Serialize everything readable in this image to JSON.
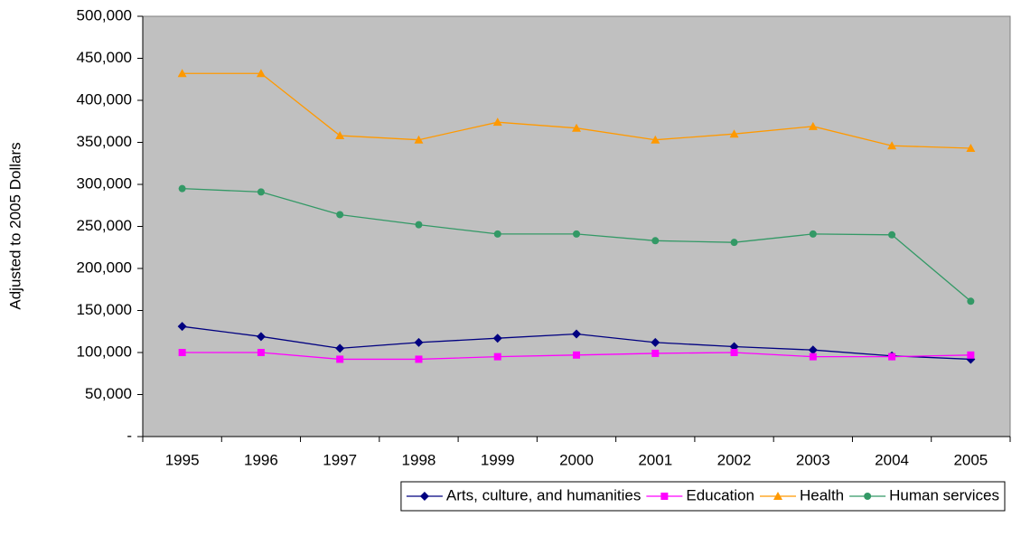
{
  "chart_data": {
    "type": "line",
    "y_label": "Adjusted to 2005 Dollars",
    "categories": [
      "1995",
      "1996",
      "1997",
      "1998",
      "1999",
      "2000",
      "2001",
      "2002",
      "2003",
      "2004",
      "2005"
    ],
    "ylim": [
      0,
      500000
    ],
    "yticks": [
      {
        "value": 0,
        "label": "-"
      },
      {
        "value": 50000,
        "label": "50,000"
      },
      {
        "value": 100000,
        "label": "100,000"
      },
      {
        "value": 150000,
        "label": "150,000"
      },
      {
        "value": 200000,
        "label": "200,000"
      },
      {
        "value": 250000,
        "label": "250,000"
      },
      {
        "value": 300000,
        "label": "300,000"
      },
      {
        "value": 350000,
        "label": "350,000"
      },
      {
        "value": 400000,
        "label": "400,000"
      },
      {
        "value": 450000,
        "label": "450,000"
      },
      {
        "value": 500000,
        "label": "500,000"
      }
    ],
    "plot_background": "#c0c0c0",
    "legend": "bottom",
    "series": [
      {
        "name": "Arts, culture, and humanities",
        "color": "#000080",
        "marker": "diamond",
        "values": [
          131000,
          119000,
          105000,
          112000,
          117000,
          122000,
          112000,
          107000,
          103000,
          96000,
          92000
        ]
      },
      {
        "name": "Education",
        "color": "#ff00ff",
        "marker": "square",
        "values": [
          100000,
          100000,
          92000,
          92000,
          95000,
          97000,
          99000,
          100000,
          95000,
          95000,
          97000
        ]
      },
      {
        "name": "Health",
        "color": "#ff9900",
        "marker": "triangle",
        "values": [
          432000,
          432000,
          358000,
          353000,
          374000,
          367000,
          353000,
          360000,
          369000,
          346000,
          343000
        ]
      },
      {
        "name": "Human services",
        "color": "#339966",
        "marker": "circle",
        "values": [
          295000,
          291000,
          264000,
          252000,
          241000,
          241000,
          233000,
          231000,
          241000,
          240000,
          161000
        ]
      }
    ]
  }
}
